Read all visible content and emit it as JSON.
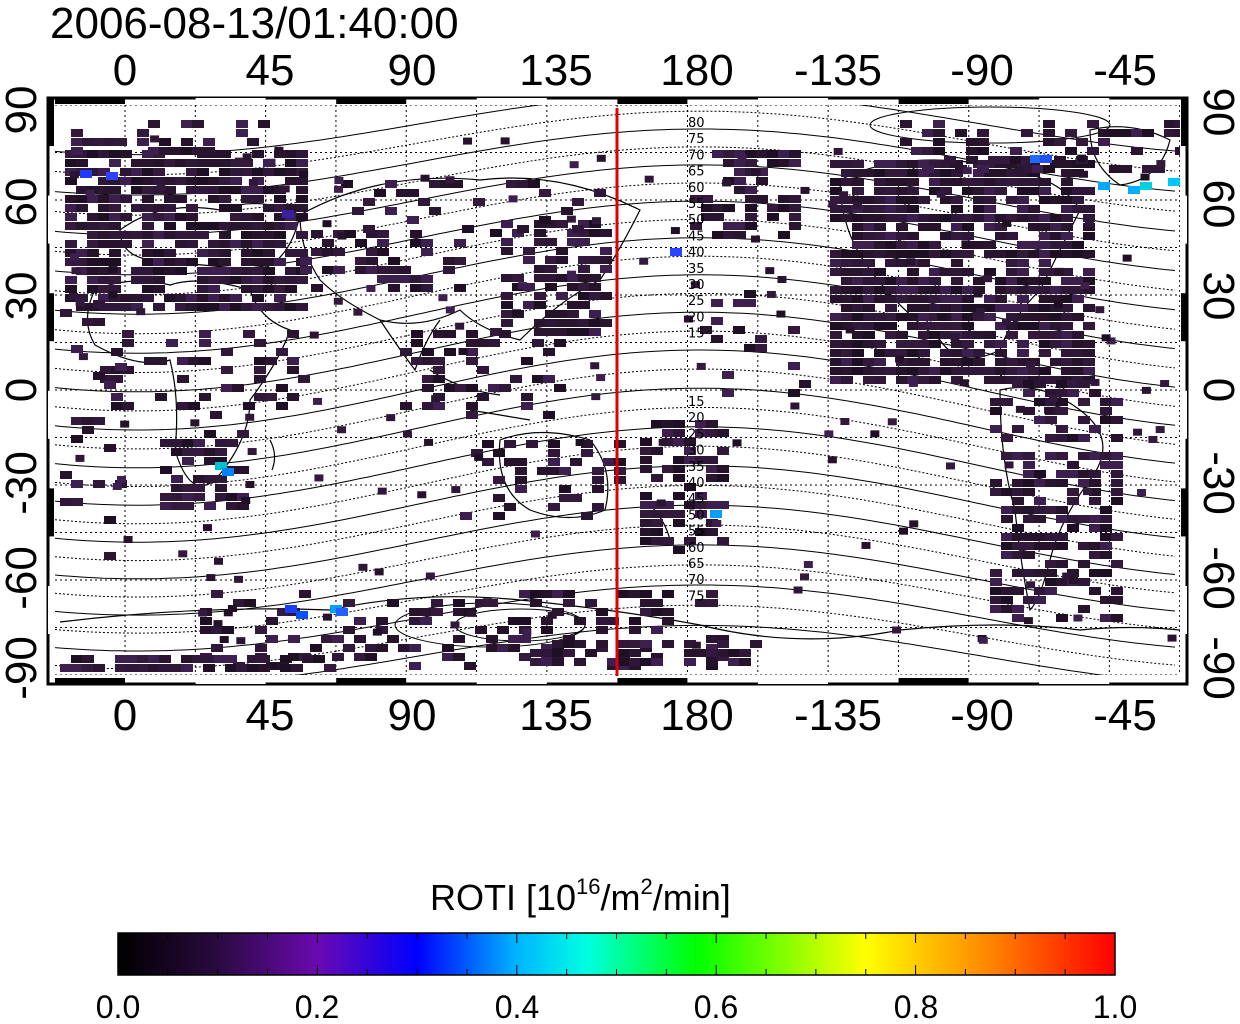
{
  "title": "2006-08-13/01:40:00",
  "map": {
    "top_lon_labels": [
      "0",
      "45",
      "90",
      "135",
      "180",
      "-135",
      "-90",
      "-45"
    ],
    "bottom_lon_labels": [
      "0",
      "45",
      "90",
      "135",
      "180",
      "-135",
      "-90",
      "-45"
    ],
    "left_lat_labels": [
      "90",
      "60",
      "30",
      "0",
      "-30",
      "-60",
      "-90"
    ],
    "right_lat_labels": [
      "90",
      "60",
      "30",
      "0",
      "-30",
      "-60",
      "-90"
    ],
    "contour_labels_north": [
      "80",
      "75",
      "70",
      "65",
      "60",
      "55",
      "50",
      "45",
      "40",
      "35",
      "30",
      "25",
      "20",
      "15"
    ],
    "contour_labels_south": [
      "15",
      "20",
      "25",
      "30",
      "35",
      "40",
      "45",
      "50",
      "55",
      "60",
      "65",
      "70",
      "75"
    ],
    "meridian_line_color": "#e00000",
    "data_cell_color": "#2a1530"
  },
  "colorbar": {
    "title_prefix": "ROTI  [10",
    "title_sup1": "16",
    "title_mid": "/m",
    "title_sup2": "2",
    "title_suffix": "/min]",
    "tick_labels": [
      "0.0",
      "0.2",
      "0.4",
      "0.6",
      "0.8",
      "1.0"
    ],
    "colors": [
      "#000000",
      "#5a0a8c",
      "#0000ff",
      "#00ffff",
      "#00ff00",
      "#ffff00",
      "#ff7f00",
      "#ff0000"
    ]
  }
}
